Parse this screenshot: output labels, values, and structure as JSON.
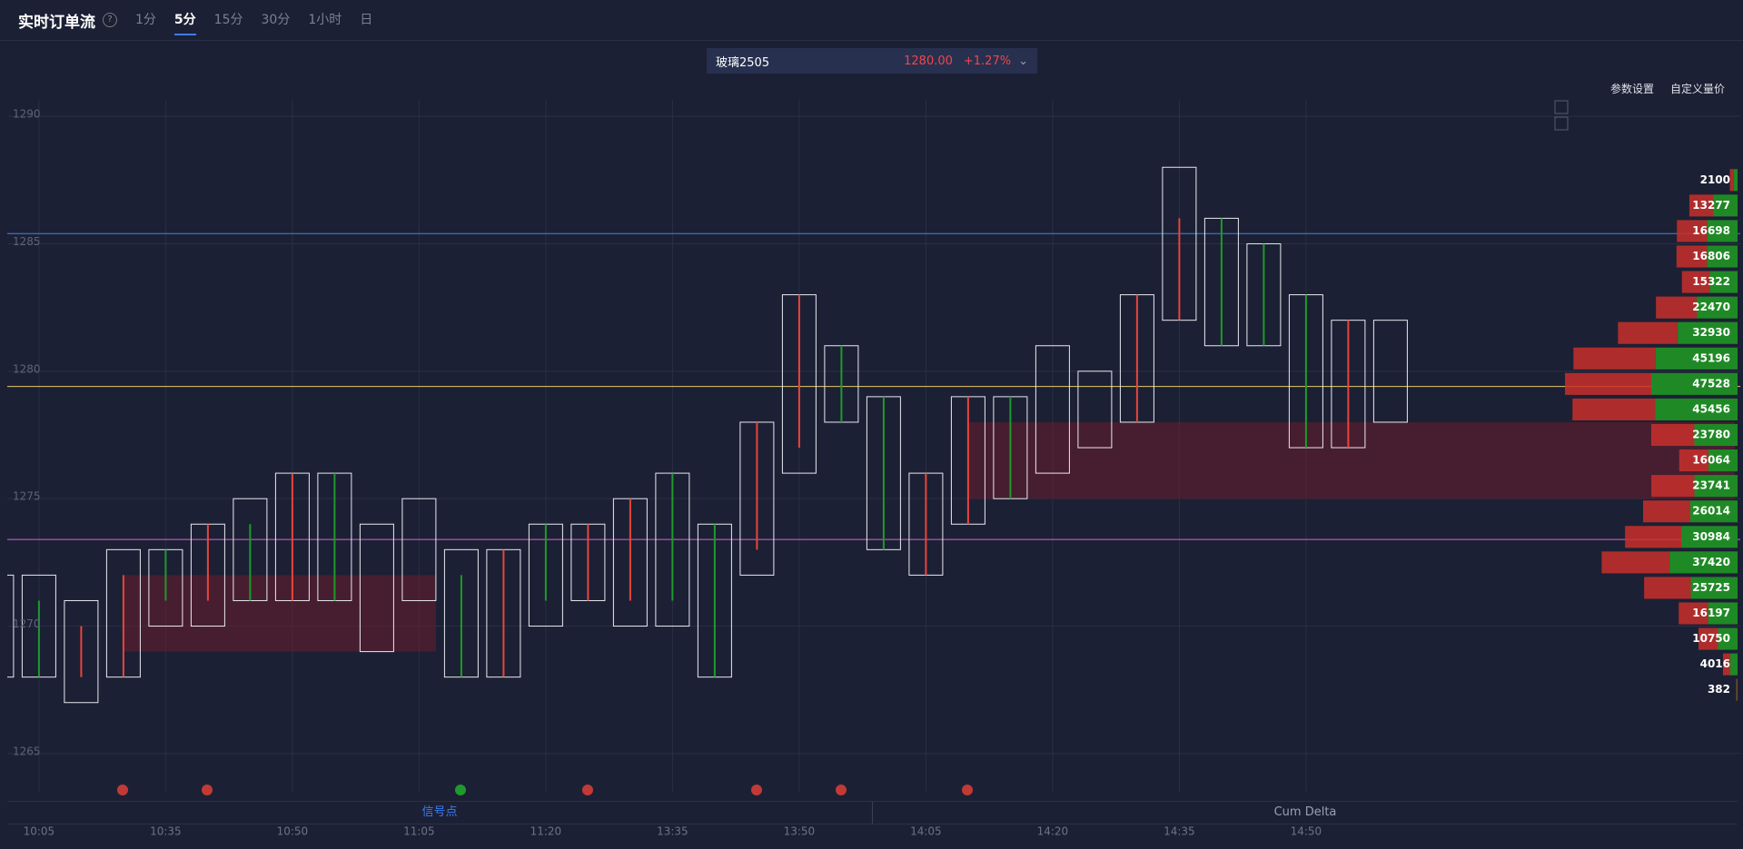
{
  "header": {
    "title": "实时订单流",
    "tabs": [
      "1分",
      "5分",
      "15分",
      "30分",
      "1小时",
      "日"
    ],
    "active_tab": 1
  },
  "symbol": {
    "name": "玻璃2505",
    "price": "1280.00",
    "change": "+1.27%"
  },
  "toolbar": [
    "参数设置",
    "自定义量价"
  ],
  "bottom_tabs": [
    "信号点",
    "Cum Delta"
  ],
  "chart_data": {
    "type": "candlestick",
    "categories": [
      null,
      "10:05",
      null,
      null,
      "10:35",
      null,
      null,
      "10:50",
      null,
      null,
      "11:05",
      null,
      null,
      "11:20",
      null,
      null,
      "13:35",
      null,
      null,
      "13:50",
      null,
      null,
      "14:05",
      null,
      null,
      "14:20",
      null,
      null,
      "14:35",
      null,
      null,
      "14:50",
      null,
      null
    ],
    "open": [
      1270,
      1268,
      1270,
      1272,
      1271,
      1274,
      1271,
      1276,
      1271,
      1271,
      1273,
      1268,
      1273,
      1271,
      1274,
      1275,
      1271,
      1268,
      1278,
      1283,
      1278,
      1273,
      1276,
      1279,
      1275,
      1278,
      1278,
      1283,
      1286,
      1281,
      1281,
      1277,
      1282,
      1280
    ],
    "high": [
      1272,
      1272,
      1271,
      1273,
      1273,
      1274,
      1275,
      1276,
      1276,
      1274,
      1275,
      1273,
      1273,
      1274,
      1274,
      1275,
      1276,
      1274,
      1278,
      1283,
      1281,
      1279,
      1276,
      1279,
      1279,
      1281,
      1280,
      1283,
      1288,
      1286,
      1285,
      1283,
      1282,
      1282
    ],
    "low": [
      1268,
      1268,
      1267,
      1268,
      1270,
      1270,
      1271,
      1271,
      1271,
      1269,
      1271,
      1268,
      1268,
      1270,
      1271,
      1270,
      1270,
      1268,
      1272,
      1276,
      1278,
      1273,
      1272,
      1274,
      1275,
      1276,
      1277,
      1278,
      1282,
      1281,
      1281,
      1277,
      1277,
      1278
    ],
    "close": [
      1270,
      1271,
      1268,
      1268,
      1273,
      1271,
      1274,
      1271,
      1276,
      1271,
      1273,
      1272,
      1268,
      1274,
      1271,
      1271,
      1276,
      1274,
      1273,
      1277,
      1281,
      1279,
      1272,
      1274,
      1279,
      1278,
      1278,
      1278,
      1282,
      1286,
      1285,
      1283,
      1277,
      1280
    ],
    "colors": {
      "up": "#1e9a2c",
      "down": "#e8453c",
      "flat": "#ffffff"
    },
    "ylim": [
      1263.5,
      1291.5
    ],
    "yticks": [
      1265,
      1270,
      1275,
      1280,
      1285,
      1290
    ],
    "grid": true,
    "levels": [
      {
        "value": 1285.4,
        "color": "#4a7fe0"
      },
      {
        "value": 1279.4,
        "color": "#e8c86a"
      },
      {
        "value": 1273.4,
        "color": "#d763d8"
      }
    ],
    "zones": [
      {
        "start": 3,
        "end": 10,
        "low": 1269,
        "high": 1272
      },
      {
        "start": 23,
        "low": 1275,
        "high": 1278
      }
    ],
    "profile": {
      "prices": [
        1287.5,
        1286.5,
        1285.5,
        1284.5,
        1283.5,
        1282.5,
        1281.5,
        1280.5,
        1279.5,
        1278.5,
        1277.5,
        1276.5,
        1275.5,
        1274.5,
        1273.5,
        1272.5,
        1271.5,
        1270.5,
        1269.5,
        1268.5,
        1267.5
      ],
      "values": [
        2100,
        13277,
        16698,
        16806,
        15322,
        22470,
        32930,
        45196,
        47528,
        45456,
        23780,
        16064,
        23741,
        26014,
        30984,
        37420,
        25725,
        16197,
        10750,
        4016,
        382
      ]
    }
  }
}
